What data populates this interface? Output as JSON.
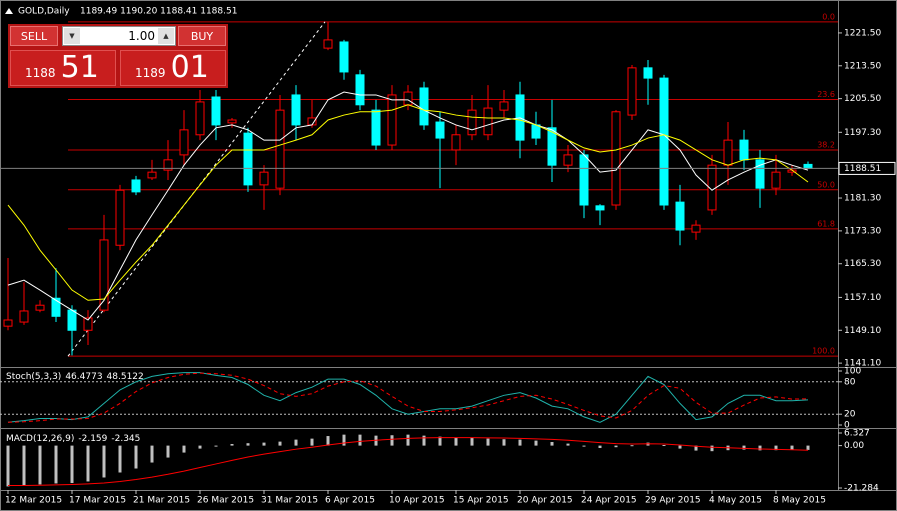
{
  "header": {
    "symbol": "GOLD,Daily",
    "ohlc": "1189.49 1190.20 1188.41 1188.51"
  },
  "trade_panel": {
    "sell": "SELL",
    "buy": "BUY",
    "lot": "1.00",
    "sell_price_small": "1188",
    "sell_price_big": "51",
    "buy_price_small": "1189",
    "buy_price_big": "01"
  },
  "chart_data": [
    {
      "type": "candlestick",
      "title": "GOLD,Daily",
      "categories": [
        "12 Mar 2015",
        null,
        null,
        null,
        "17 Mar 2015",
        null,
        null,
        null,
        "21 Mar 2015",
        null,
        null,
        null,
        "26 Mar 2015",
        null,
        null,
        null,
        "31 Mar 2015",
        null,
        null,
        null,
        "6 Apr 2015",
        null,
        null,
        null,
        "10 Apr 2015",
        null,
        null,
        null,
        "15 Apr 2015",
        null,
        null,
        null,
        "20 Apr 2015",
        null,
        null,
        null,
        "24 Apr 2015",
        null,
        null,
        null,
        "29 Apr 2015",
        null,
        null,
        null,
        "4 May 2015",
        null,
        null,
        null,
        "8 May 2015",
        null,
        null
      ],
      "open": [
        1150.1,
        1151.1,
        1154.0,
        1156.9,
        1154.0,
        1149.1,
        1154.0,
        1169.8,
        1185.7,
        1186.2,
        1188.1,
        1191.8,
        1196.7,
        1205.9,
        1199.6,
        1197.1,
        1184.5,
        1183.7,
        1206.4,
        1199.1,
        1217.8,
        1219.3,
        1211.3,
        1202.7,
        1194.2,
        1204.0,
        1208.1,
        1199.8,
        1193.0,
        1196.7,
        1196.7,
        1202.7,
        1206.4,
        1199.1,
        1198.4,
        1189.3,
        1191.8,
        1179.4,
        1179.6,
        1201.5,
        1213.0,
        1210.5,
        1180.3,
        1173.0,
        1178.4,
        1189.3,
        1195.4,
        1190.6,
        1183.7,
        1187.6,
        1189.49
      ],
      "high": [
        1166.7,
        1160.8,
        1156.4,
        1164.2,
        1155.2,
        1154.0,
        1177.2,
        1184.5,
        1186.7,
        1190.6,
        1195.4,
        1202.7,
        1207.6,
        1207.6,
        1200.8,
        1198.4,
        1189.3,
        1206.4,
        1208.8,
        1205.2,
        1224.2,
        1219.8,
        1212.5,
        1205.2,
        1208.8,
        1208.8,
        1209.6,
        1202.3,
        1199.1,
        1206.4,
        1208.8,
        1207.6,
        1209.6,
        1202.3,
        1205.2,
        1194.2,
        1193.0,
        1179.8,
        1202.7,
        1213.7,
        1214.9,
        1211.3,
        1184.5,
        1175.9,
        1191.8,
        1199.8,
        1197.9,
        1193.0,
        1191.8,
        1189.3,
        1190.2
      ],
      "low": [
        1149.1,
        1150.4,
        1153.5,
        1151.1,
        1143.0,
        1145.5,
        1153.5,
        1168.6,
        1182.0,
        1185.7,
        1185.7,
        1189.3,
        1195.4,
        1195.4,
        1198.4,
        1182.8,
        1178.4,
        1182.0,
        1195.4,
        1198.4,
        1217.3,
        1210.1,
        1202.7,
        1193.0,
        1193.0,
        1202.7,
        1197.9,
        1183.7,
        1189.3,
        1195.4,
        1195.4,
        1200.8,
        1191.0,
        1194.2,
        1185.2,
        1187.6,
        1176.4,
        1174.7,
        1178.4,
        1200.3,
        1204.0,
        1178.4,
        1169.8,
        1171.1,
        1177.2,
        1184.5,
        1188.1,
        1178.9,
        1182.0,
        1186.7,
        1188.41
      ],
      "close": [
        1151.6,
        1153.8,
        1155.2,
        1152.5,
        1149.1,
        1152.1,
        1171.1,
        1183.2,
        1182.8,
        1187.6,
        1190.6,
        1197.9,
        1204.7,
        1199.1,
        1200.3,
        1184.5,
        1187.6,
        1202.7,
        1199.1,
        1200.8,
        1219.8,
        1212.0,
        1204.0,
        1194.2,
        1206.4,
        1207.1,
        1199.1,
        1195.9,
        1196.7,
        1202.7,
        1203.2,
        1204.7,
        1195.4,
        1195.9,
        1189.3,
        1191.8,
        1179.6,
        1178.4,
        1202.3,
        1213.0,
        1210.5,
        1179.6,
        1173.5,
        1174.7,
        1189.3,
        1195.4,
        1190.6,
        1183.7,
        1187.6,
        1188.1,
        1188.51
      ],
      "up_color": "#ff0000",
      "down_color": "#00ffff",
      "lines": [
        {
          "color": "#ffffff",
          "values": [
            1160.1,
            1161.3,
            1158.9,
            1156.4,
            1154.0,
            1151.6,
            1156.4,
            1163.8,
            1171.1,
            1177.2,
            1183.2,
            1189.3,
            1194.2,
            1198.4,
            1199.1,
            1197.9,
            1195.4,
            1195.4,
            1198.4,
            1199.1,
            1205.2,
            1207.1,
            1206.4,
            1206.4,
            1205.2,
            1205.2,
            1202.7,
            1200.8,
            1199.1,
            1197.9,
            1199.1,
            1200.3,
            1200.8,
            1199.1,
            1197.9,
            1195.4,
            1191.8,
            1187.6,
            1188.1,
            1193.0,
            1197.9,
            1196.7,
            1193.0,
            1186.9,
            1183.2,
            1185.7,
            1187.6,
            1189.3,
            1190.6,
            1189.3,
            1188.1
          ]
        },
        {
          "color": "#ffff00",
          "values": [
            1179.6,
            1174.7,
            1168.6,
            1163.8,
            1158.9,
            1156.4,
            1156.7,
            1161.3,
            1165.7,
            1169.8,
            1174.7,
            1179.6,
            1184.5,
            1189.3,
            1193.0,
            1193.0,
            1193.0,
            1194.2,
            1195.4,
            1196.7,
            1200.3,
            1201.5,
            1202.3,
            1202.3,
            1202.7,
            1204.0,
            1202.7,
            1202.3,
            1201.5,
            1201.0,
            1200.8,
            1200.8,
            1200.3,
            1199.1,
            1197.4,
            1195.4,
            1193.5,
            1192.5,
            1193.0,
            1194.2,
            1195.9,
            1196.7,
            1195.4,
            1193.0,
            1190.6,
            1189.3,
            1190.6,
            1191.0,
            1190.6,
            1188.1,
            1185.2
          ]
        }
      ],
      "fib_levels": [
        {
          "value": 1224.2,
          "label": "0.0"
        },
        {
          "value": 1205.3,
          "label": "23.6"
        },
        {
          "value": 1193.0,
          "label": "38.2"
        },
        {
          "value": 1183.3,
          "label": "50.0"
        },
        {
          "value": 1173.8,
          "label": "61.8"
        },
        {
          "value": 1142.8,
          "label": "100.0"
        }
      ],
      "fib_color": "#c80000",
      "ylim": [
        1140.4,
        1228.3
      ],
      "yticks": [
        {
          "value": 1221.5,
          "label": "1221.50"
        },
        {
          "value": 1213.5,
          "label": "1213.50"
        },
        {
          "value": 1205.5,
          "label": "1205.50"
        },
        {
          "value": 1197.3,
          "label": "1197.30"
        },
        {
          "value": 1181.3,
          "label": "1181.30"
        },
        {
          "value": 1173.3,
          "label": "1173.30"
        },
        {
          "value": 1165.3,
          "label": "1165.30"
        },
        {
          "value": 1157.1,
          "label": "1157.10"
        },
        {
          "value": 1149.1,
          "label": "1149.10"
        },
        {
          "value": 1141.1,
          "label": "1141.10"
        }
      ]
    },
    {
      "type": "line",
      "title": "Stoch(5,3,3)",
      "series": [
        {
          "color": "#20b2aa",
          "values": [
            5,
            8,
            12,
            12,
            10,
            15,
            40,
            65,
            80,
            90,
            95,
            97,
            97,
            92,
            88,
            75,
            55,
            45,
            60,
            70,
            85,
            85,
            75,
            55,
            30,
            20,
            25,
            30,
            30,
            35,
            45,
            55,
            60,
            50,
            35,
            30,
            15,
            5,
            20,
            55,
            90,
            75,
            40,
            10,
            15,
            40,
            55,
            55,
            45,
            45,
            46.4773
          ]
        },
        {
          "color": "#ff0000",
          "dashed": true,
          "values": [
            5,
            6,
            8,
            11,
            11,
            12,
            22,
            40,
            62,
            78,
            88,
            94,
            96,
            95,
            92,
            85,
            73,
            58,
            53,
            58,
            72,
            80,
            82,
            72,
            53,
            35,
            25,
            25,
            28,
            32,
            37,
            45,
            53,
            55,
            48,
            38,
            27,
            17,
            13,
            27,
            55,
            73,
            68,
            42,
            22,
            22,
            37,
            50,
            52,
            48,
            48.5122
          ]
        }
      ],
      "ylim": [
        0,
        100
      ],
      "yticks": [
        0,
        20,
        80,
        100
      ]
    },
    {
      "type": "bar",
      "title": "MACD(12,26,9)",
      "series": [
        {
          "type": "bar",
          "color": "#c0c0c0",
          "values": [
            -20.5,
            -20.0,
            -19.5,
            -19.0,
            -18.8,
            -18.0,
            -16.0,
            -13.5,
            -11.5,
            -8.5,
            -6.0,
            -3.5,
            -1.5,
            -0.5,
            0.8,
            1.2,
            1.5,
            2.0,
            3.0,
            3.5,
            4.8,
            5.5,
            5.5,
            5.0,
            5.2,
            5.5,
            5.0,
            4.5,
            4.0,
            3.8,
            3.5,
            3.2,
            3.0,
            2.5,
            1.8,
            1.0,
            -0.3,
            -1.2,
            -0.8,
            0.2,
            1.5,
            0.3,
            -1.5,
            -2.5,
            -2.8,
            -2.3,
            -2.0,
            -2.4,
            -2.3,
            -2.2,
            -2.159
          ]
        },
        {
          "type": "line",
          "color": "#ff0000",
          "values": [
            -20.0,
            -20.0,
            -19.9,
            -19.7,
            -19.5,
            -19.2,
            -18.8,
            -18.0,
            -17.0,
            -15.8,
            -14.4,
            -12.8,
            -11.0,
            -9.2,
            -7.4,
            -5.7,
            -4.3,
            -3.0,
            -1.8,
            -0.8,
            0.3,
            1.3,
            2.1,
            2.7,
            3.2,
            3.6,
            3.9,
            4.0,
            4.0,
            4.0,
            3.9,
            3.8,
            3.6,
            3.4,
            3.1,
            2.7,
            2.1,
            1.5,
            1.0,
            0.8,
            0.9,
            0.8,
            0.3,
            -0.3,
            -0.8,
            -1.1,
            -1.4,
            -1.7,
            -1.9,
            -2.1,
            -2.345
          ]
        }
      ],
      "ylim": [
        -21.284,
        6.327
      ],
      "yticks": [
        -21.284,
        {
          "value": 0,
          "label": "0.00"
        },
        6.327
      ]
    }
  ]
}
